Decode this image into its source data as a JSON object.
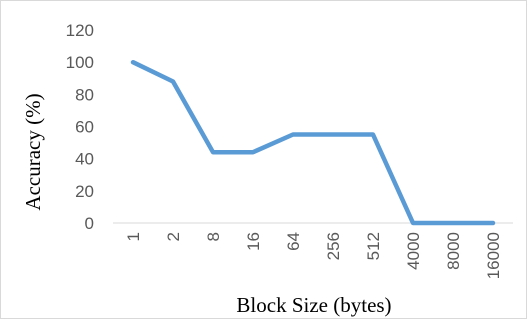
{
  "chart_data": {
    "type": "line",
    "title": "",
    "xlabel": "Block Size (bytes)",
    "ylabel": "Accuracy (%)",
    "categories": [
      "1",
      "2",
      "8",
      "16",
      "64",
      "256",
      "512",
      "4000",
      "8000",
      "16000"
    ],
    "series": [
      {
        "values": [
          100,
          88,
          44,
          44,
          55,
          55,
          55,
          0,
          0,
          0
        ]
      }
    ],
    "ylim": [
      0,
      120
    ],
    "yticks": [
      "0",
      "20",
      "40",
      "60",
      "80",
      "100",
      "120"
    ],
    "grid": false,
    "legend": "none",
    "line_color": "#5b9bd5",
    "text_color": "#595959"
  }
}
